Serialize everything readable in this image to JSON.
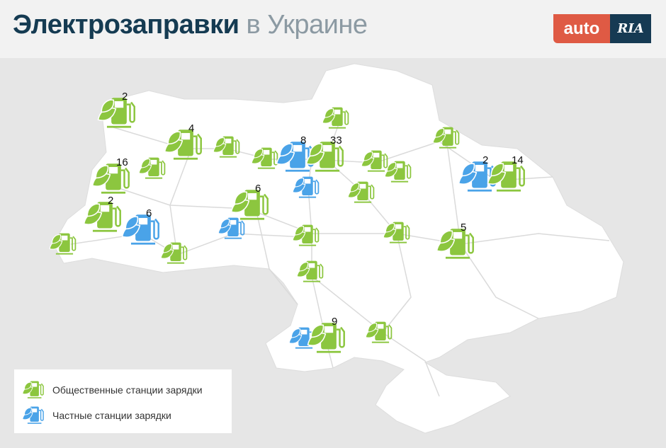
{
  "header": {
    "title_bold": "Электрозаправки",
    "title_light": "в Украине"
  },
  "logo": {
    "part1": "auto",
    "part2": "RIA"
  },
  "colors": {
    "public": "#8cc63f",
    "private": "#4aa3e8",
    "title": "#153b52",
    "logo_red": "#df5a44",
    "logo_blue": "#163a53"
  },
  "legend": {
    "public_label": "Общественные станции зарядки",
    "private_label": "Частные станции зарядки"
  },
  "markers": [
    {
      "type": "public",
      "count": "2"
    },
    {
      "type": "public",
      "count": "4"
    },
    {
      "type": "public",
      "count": ""
    },
    {
      "type": "public",
      "count": ""
    },
    {
      "type": "private",
      "count": "8"
    },
    {
      "type": "public",
      "count": "33"
    },
    {
      "type": "public",
      "count": ""
    },
    {
      "type": "public",
      "count": ""
    },
    {
      "type": "public",
      "count": ""
    },
    {
      "type": "public",
      "count": ""
    },
    {
      "type": "private",
      "count": "2"
    },
    {
      "type": "public",
      "count": "14"
    },
    {
      "type": "public",
      "count": "16"
    },
    {
      "type": "public",
      "count": ""
    },
    {
      "type": "public",
      "count": "2"
    },
    {
      "type": "private",
      "count": "6"
    },
    {
      "type": "public",
      "count": ""
    },
    {
      "type": "public",
      "count": ""
    },
    {
      "type": "public",
      "count": "6"
    },
    {
      "type": "private",
      "count": ""
    },
    {
      "type": "public",
      "count": ""
    },
    {
      "type": "private",
      "count": ""
    },
    {
      "type": "public",
      "count": ""
    },
    {
      "type": "public",
      "count": ""
    },
    {
      "type": "public",
      "count": "5"
    },
    {
      "type": "public",
      "count": ""
    },
    {
      "type": "private",
      "count": ""
    },
    {
      "type": "public",
      "count": "9"
    },
    {
      "type": "public",
      "count": ""
    }
  ]
}
